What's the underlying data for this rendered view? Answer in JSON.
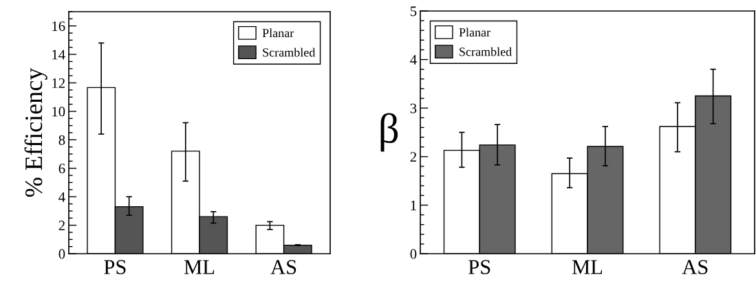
{
  "chart_data": [
    {
      "type": "bar",
      "categories": [
        "PS",
        "ML",
        "AS"
      ],
      "ylabel": "% Efficiency",
      "ylim": [
        0,
        17
      ],
      "yticks": [
        0,
        2,
        4,
        6,
        8,
        10,
        12,
        14,
        16
      ],
      "legend": "top right",
      "grid": false,
      "series": [
        {
          "name": "Planar",
          "color": "#ffffff",
          "values": [
            11.67,
            7.2,
            2.0
          ],
          "errors": [
            [
              8.4,
              14.8
            ],
            [
              5.1,
              9.2
            ],
            [
              1.7,
              2.25
            ]
          ]
        },
        {
          "name": "Scrambled",
          "color": "#555555",
          "values": [
            3.3,
            2.6,
            0.6
          ],
          "errors": [
            [
              2.7,
              4.0
            ],
            [
              2.15,
              2.95
            ],
            [
              0.57,
              0.63
            ]
          ]
        }
      ]
    },
    {
      "type": "bar",
      "categories": [
        "PS",
        "ML",
        "AS"
      ],
      "ylabel": "β",
      "ylim": [
        0,
        5
      ],
      "yticks": [
        0,
        1,
        2,
        3,
        4,
        5
      ],
      "legend": "top left",
      "grid": false,
      "series": [
        {
          "name": "Planar",
          "color": "#ffffff",
          "values": [
            2.13,
            1.65,
            2.62
          ],
          "errors": [
            [
              1.78,
              2.5
            ],
            [
              1.36,
              1.97
            ],
            [
              2.1,
              3.11
            ]
          ]
        },
        {
          "name": "Scrambled",
          "color": "#666666",
          "values": [
            2.24,
            2.21,
            3.25
          ],
          "errors": [
            [
              1.83,
              2.66
            ],
            [
              1.81,
              2.62
            ],
            [
              2.68,
              3.8
            ]
          ]
        }
      ]
    }
  ]
}
